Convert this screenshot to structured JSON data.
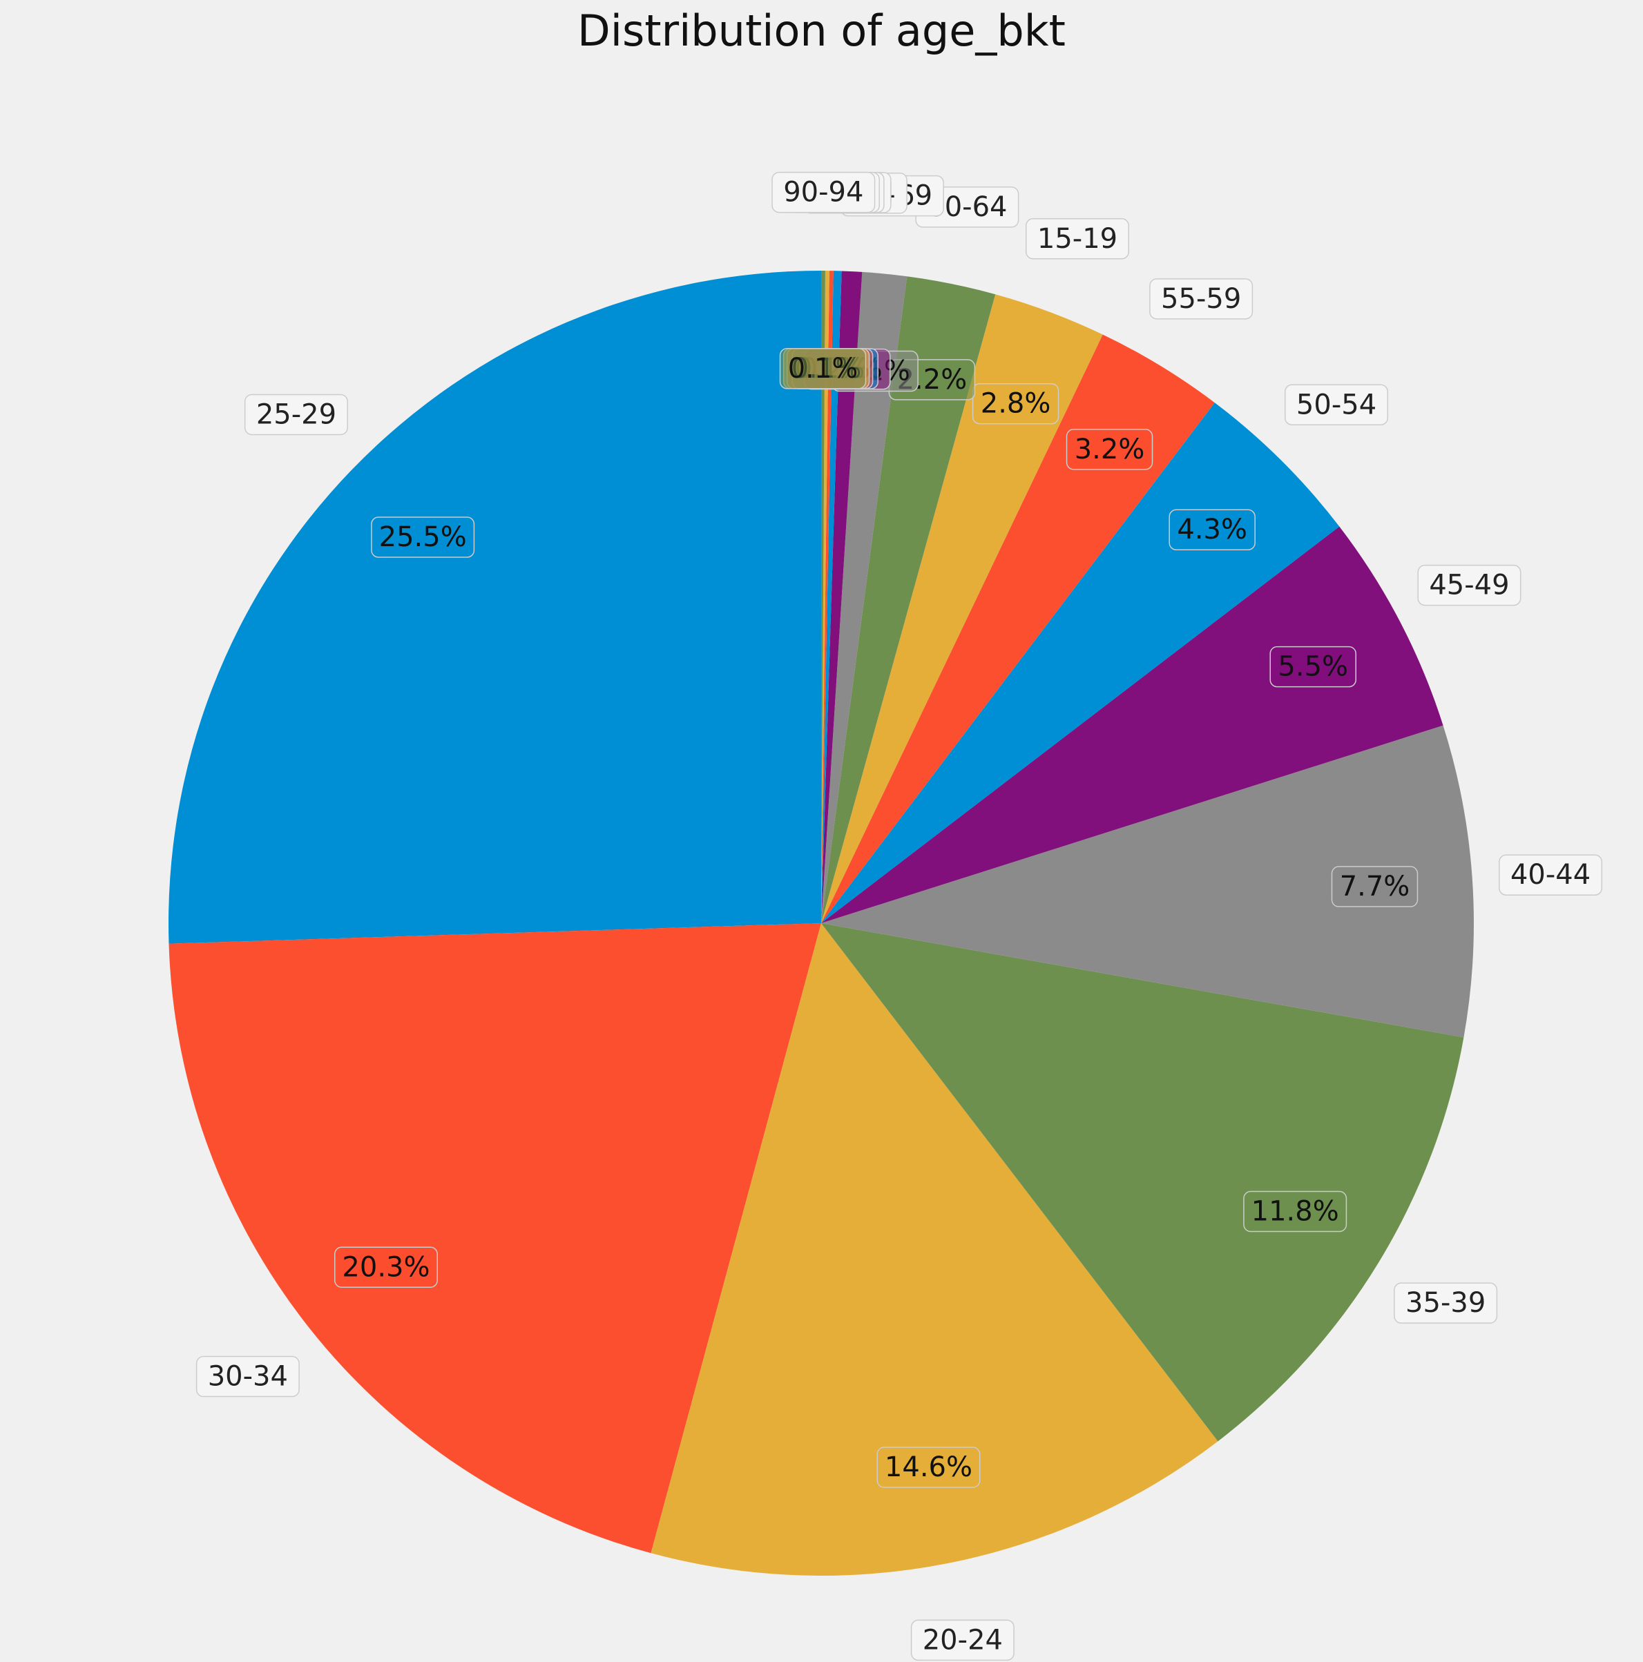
{
  "chart_data": {
    "type": "pie",
    "title": "Distribution of age_bkt",
    "slices": [
      {
        "label": "25-29",
        "value": 25.5,
        "pct_label": "25.5%",
        "color": "#008fd5"
      },
      {
        "label": "30-34",
        "value": 20.3,
        "pct_label": "20.3%",
        "color": "#fc4f30"
      },
      {
        "label": "20-24",
        "value": 14.6,
        "pct_label": "14.6%",
        "color": "#e5ae38"
      },
      {
        "label": "35-39",
        "value": 11.8,
        "pct_label": "11.8%",
        "color": "#6d904f"
      },
      {
        "label": "40-44",
        "value": 7.7,
        "pct_label": "7.7%",
        "color": "#8b8b8b"
      },
      {
        "label": "45-49",
        "value": 5.5,
        "pct_label": "5.5%",
        "color": "#810f7c"
      },
      {
        "label": "50-54",
        "value": 4.3,
        "pct_label": "4.3%",
        "color": "#008fd5"
      },
      {
        "label": "55-59",
        "value": 3.2,
        "pct_label": "3.2%",
        "color": "#fc4f30"
      },
      {
        "label": "15-19",
        "value": 2.8,
        "pct_label": "2.8%",
        "color": "#e5ae38"
      },
      {
        "label": "60-64",
        "value": 2.2,
        "pct_label": "2.2%",
        "color": "#6d904f"
      },
      {
        "label": "65-69",
        "value": 1.1,
        "pct_label": "1.1%",
        "color": "#8b8b8b"
      },
      {
        "label": "70-74",
        "value": 0.5,
        "pct_label": "0.5%",
        "color": "#810f7c"
      },
      {
        "label": "75-79",
        "value": 0.2,
        "pct_label": "0.2%",
        "color": "#008fd5"
      },
      {
        "label": "80-84",
        "value": 0.1,
        "pct_label": "0.1%",
        "color": "#fc4f30"
      },
      {
        "label": "85-89",
        "value": 0.1,
        "pct_label": "0.1%",
        "color": "#e5ae38"
      },
      {
        "label": "90-94",
        "value": 0.1,
        "pct_label": "0.1%",
        "color": "#6d904f"
      }
    ],
    "start_angle_deg": 90,
    "direction": "counterclockwise",
    "legend": "none"
  }
}
